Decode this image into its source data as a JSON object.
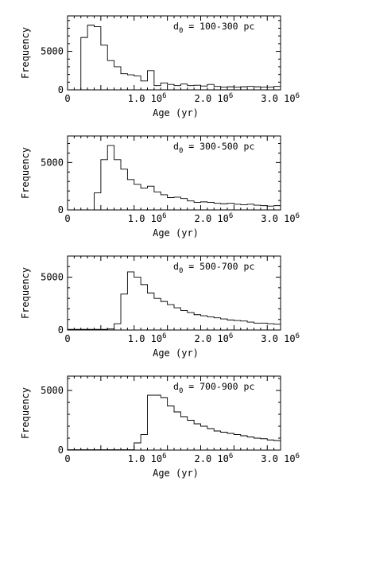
{
  "chart_data": [
    {
      "type": "histogram",
      "annotation": {
        "main": "d",
        "sub": "0",
        "rest": " = 100-300 pc"
      },
      "xlabel": "Age (yr)",
      "ylabel": "Frequency",
      "xlim": [
        0,
        3.2
      ],
      "ylim": [
        0,
        9600
      ],
      "bin_width": 0.1,
      "x_start": 0.2,
      "x_tick_labels": [
        {
          "x": 0,
          "text": "0"
        },
        {
          "x": 1.0,
          "text": "1.0 10",
          "sup": "6"
        },
        {
          "x": 2.0,
          "text": "2.0 10",
          "sup": "6"
        },
        {
          "x": 3.0,
          "text": "3.0 10",
          "sup": "6"
        }
      ],
      "y_tick_labels": [
        {
          "y": 0,
          "text": "0"
        },
        {
          "y": 5000,
          "text": "5000"
        }
      ],
      "values": [
        6800,
        8400,
        8200,
        5800,
        3800,
        3000,
        2100,
        1950,
        1800,
        1150,
        2500,
        550,
        900,
        700,
        550,
        750,
        550,
        600,
        500,
        700,
        450,
        350,
        400,
        350,
        400,
        450,
        400,
        350,
        350,
        450
      ]
    },
    {
      "type": "histogram",
      "annotation": {
        "main": "d",
        "sub": "0",
        "rest": " = 300-500 pc"
      },
      "xlabel": "Age (yr)",
      "ylabel": "Frequency",
      "xlim": [
        0,
        3.2
      ],
      "ylim": [
        0,
        7800
      ],
      "bin_width": 0.1,
      "x_start": 0.4,
      "x_tick_labels": [
        {
          "x": 0,
          "text": "0"
        },
        {
          "x": 1.0,
          "text": "1.0 10",
          "sup": "6"
        },
        {
          "x": 2.0,
          "text": "2.0 10",
          "sup": "6"
        },
        {
          "x": 3.0,
          "text": "3.0 10",
          "sup": "6"
        }
      ],
      "y_tick_labels": [
        {
          "y": 0,
          "text": "0"
        },
        {
          "y": 5000,
          "text": "5000"
        }
      ],
      "values": [
        1800,
        5300,
        6800,
        5300,
        4300,
        3200,
        2700,
        2300,
        2500,
        1900,
        1600,
        1300,
        1350,
        1200,
        950,
        800,
        850,
        800,
        700,
        650,
        700,
        600,
        550,
        600,
        500,
        450,
        400,
        450
      ]
    },
    {
      "type": "histogram",
      "annotation": {
        "main": "d",
        "sub": "0",
        "rest": " = 500-700 pc"
      },
      "xlabel": "Age (yr)",
      "ylabel": "Frequency",
      "xlim": [
        0,
        3.2
      ],
      "ylim": [
        0,
        7000
      ],
      "bin_width": 0.1,
      "x_start": 0.0,
      "x_tick_labels": [
        {
          "x": 0,
          "text": "0"
        },
        {
          "x": 1.0,
          "text": "1.0 10",
          "sup": "6"
        },
        {
          "x": 2.0,
          "text": "2.0 10",
          "sup": "6"
        },
        {
          "x": 3.0,
          "text": "3.0 10",
          "sup": "6"
        }
      ],
      "y_tick_labels": [
        {
          "y": 0,
          "text": "0"
        },
        {
          "y": 5000,
          "text": "5000"
        }
      ],
      "values": [
        60,
        60,
        60,
        60,
        60,
        60,
        100,
        600,
        3400,
        5500,
        5000,
        4300,
        3500,
        3000,
        2700,
        2400,
        2100,
        1850,
        1650,
        1450,
        1350,
        1250,
        1150,
        1050,
        950,
        900,
        850,
        750,
        650,
        650,
        600,
        550
      ]
    },
    {
      "type": "histogram",
      "annotation": {
        "main": "d",
        "sub": "0",
        "rest": " = 700-900 pc"
      },
      "xlabel": "Age (yr)",
      "ylabel": "Frequency",
      "xlim": [
        0,
        3.2
      ],
      "ylim": [
        0,
        6200
      ],
      "bin_width": 0.1,
      "x_start": 0.0,
      "x_tick_labels": [
        {
          "x": 0,
          "text": "0"
        },
        {
          "x": 1.0,
          "text": "1.0 10",
          "sup": "6"
        },
        {
          "x": 2.0,
          "text": "2.0 10",
          "sup": "6"
        },
        {
          "x": 3.0,
          "text": "3.0 10",
          "sup": "6"
        }
      ],
      "y_tick_labels": [
        {
          "y": 0,
          "text": "0"
        },
        {
          "y": 5000,
          "text": "5000"
        }
      ],
      "values": [
        30,
        30,
        30,
        30,
        30,
        30,
        30,
        30,
        30,
        30,
        600,
        1300,
        4600,
        4600,
        4400,
        3700,
        3200,
        2800,
        2500,
        2200,
        2000,
        1800,
        1600,
        1500,
        1400,
        1300,
        1200,
        1100,
        1000,
        950,
        850,
        800
      ]
    }
  ]
}
